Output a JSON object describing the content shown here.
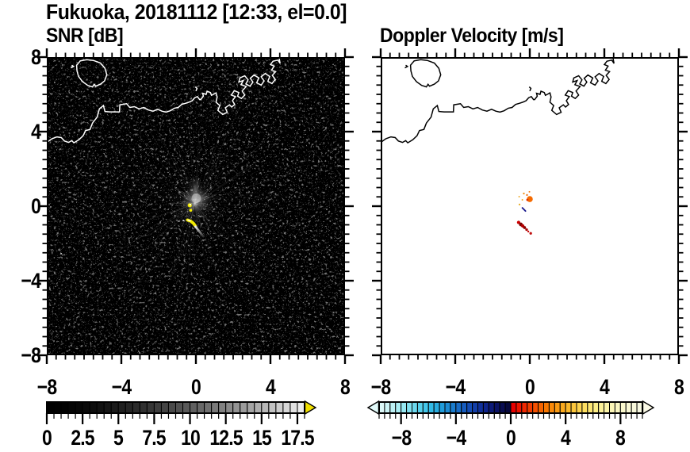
{
  "title": "Fukuoka, 20181112 [12:33, el=0.0]",
  "panels": {
    "left_subtitle": "SNR [dB]",
    "right_subtitle": "Doppler Velocity [m/s]"
  },
  "axis": {
    "range": [
      -8,
      8
    ],
    "tick_values": [
      -8,
      -4,
      0,
      4,
      8
    ],
    "tick_labels": [
      "−8",
      "−4",
      "0",
      "4",
      "8"
    ],
    "minor_step": 0.5
  },
  "coastline": {
    "main": [
      [
        -8.0,
        3.42
      ],
      [
        -7.72,
        3.62
      ],
      [
        -7.45,
        3.72
      ],
      [
        -7.22,
        3.68
      ],
      [
        -7.05,
        3.5
      ],
      [
        -6.83,
        3.42
      ],
      [
        -6.66,
        3.52
      ],
      [
        -6.55,
        3.4
      ],
      [
        -6.28,
        3.56
      ],
      [
        -6.05,
        3.78
      ],
      [
        -5.92,
        4.06
      ],
      [
        -5.68,
        4.12
      ],
      [
        -5.55,
        4.46
      ],
      [
        -5.3,
        4.78
      ],
      [
        -5.18,
        5.22
      ],
      [
        -4.96,
        5.4
      ],
      [
        -4.88,
        5.08
      ],
      [
        -4.6,
        5.06
      ],
      [
        -4.34,
        5.06
      ],
      [
        -4.1,
        5.06
      ],
      [
        -4.08,
        5.44
      ],
      [
        -3.72,
        5.5
      ],
      [
        -3.55,
        5.3
      ],
      [
        -3.3,
        5.34
      ],
      [
        -3.05,
        5.22
      ],
      [
        -2.8,
        5.3
      ],
      [
        -2.55,
        5.16
      ],
      [
        -2.3,
        5.1
      ],
      [
        -2.05,
        5.2
      ],
      [
        -1.82,
        5.1
      ],
      [
        -1.6,
        5.05
      ],
      [
        -1.38,
        5.12
      ],
      [
        -1.15,
        5.26
      ],
      [
        -0.95,
        5.3
      ],
      [
        -0.76,
        5.46
      ],
      [
        -0.56,
        5.52
      ],
      [
        -0.38,
        5.58
      ],
      [
        -0.2,
        5.66
      ],
      [
        -0.06,
        5.82
      ],
      [
        0.08,
        5.88
      ],
      [
        0.2,
        5.72
      ],
      [
        0.26,
        5.72
      ],
      [
        0.4,
        5.9
      ],
      [
        0.36,
        6.06
      ],
      [
        0.55,
        6.0
      ],
      [
        0.6,
        6.17
      ],
      [
        0.78,
        6.1
      ],
      [
        0.84,
        5.95
      ],
      [
        0.98,
        6.02
      ],
      [
        1.08,
        6.08
      ],
      [
        1.14,
        5.86
      ],
      [
        1.08,
        5.58
      ],
      [
        1.28,
        5.4
      ],
      [
        1.18,
        5.14
      ],
      [
        1.44,
        4.92
      ],
      [
        1.68,
        5.04
      ],
      [
        1.58,
        5.28
      ],
      [
        1.8,
        5.44
      ],
      [
        1.92,
        5.32
      ],
      [
        2.08,
        5.46
      ],
      [
        1.96,
        5.66
      ],
      [
        2.12,
        5.88
      ],
      [
        1.9,
        5.96
      ],
      [
        2.06,
        6.2
      ],
      [
        2.3,
        6.1
      ],
      [
        2.24,
        5.9
      ],
      [
        2.44,
        5.78
      ],
      [
        2.62,
        5.96
      ],
      [
        2.48,
        6.18
      ],
      [
        2.7,
        6.42
      ],
      [
        2.42,
        6.52
      ],
      [
        2.54,
        6.74
      ],
      [
        2.3,
        6.66
      ],
      [
        2.36,
        6.88
      ],
      [
        2.62,
        7.0
      ],
      [
        2.8,
        6.78
      ],
      [
        2.68,
        6.56
      ],
      [
        2.9,
        6.44
      ],
      [
        3.06,
        6.66
      ],
      [
        2.92,
        6.86
      ],
      [
        3.12,
        7.04
      ],
      [
        3.38,
        6.88
      ],
      [
        3.26,
        6.62
      ],
      [
        3.5,
        6.5
      ],
      [
        3.66,
        6.72
      ],
      [
        3.5,
        6.94
      ],
      [
        3.72,
        7.12
      ],
      [
        3.96,
        6.96
      ],
      [
        3.86,
        6.7
      ],
      [
        4.08,
        6.58
      ],
      [
        4.26,
        6.8
      ],
      [
        4.1,
        7.02
      ],
      [
        4.28,
        7.22
      ],
      [
        4.06,
        7.3
      ],
      [
        4.2,
        7.52
      ],
      [
        4.0,
        7.6
      ],
      [
        4.14,
        7.78
      ],
      [
        4.4,
        7.84
      ],
      [
        4.52,
        7.66
      ],
      [
        4.46,
        7.98
      ],
      [
        4.3,
        8.06
      ]
    ],
    "island": [
      [
        -6.2,
        7.8
      ],
      [
        -5.85,
        7.86
      ],
      [
        -5.5,
        7.82
      ],
      [
        -5.12,
        7.68
      ],
      [
        -4.88,
        7.4
      ],
      [
        -4.78,
        7.05
      ],
      [
        -4.9,
        6.72
      ],
      [
        -5.12,
        6.55
      ],
      [
        -5.38,
        6.44
      ],
      [
        -5.46,
        6.54
      ],
      [
        -5.55,
        6.4
      ],
      [
        -5.8,
        6.48
      ],
      [
        -6.08,
        6.68
      ],
      [
        -6.3,
        6.96
      ],
      [
        -6.38,
        7.26
      ],
      [
        -6.4,
        7.56
      ],
      [
        -6.2,
        7.8
      ]
    ],
    "islet": [
      [
        -6.7,
        7.42
      ],
      [
        -6.56,
        7.5
      ],
      [
        -6.66,
        7.56
      ]
    ],
    "sea_mark": [
      [
        0.0,
        6.18
      ],
      [
        0.06,
        6.32
      ],
      [
        -0.03,
        6.4
      ]
    ]
  },
  "chart_data": [
    {
      "type": "heatmap",
      "title": "SNR [dB]",
      "xlim": [
        -8,
        8
      ],
      "ylim": [
        -8,
        8
      ],
      "grid": false,
      "background": "#000000",
      "coast_color": "#ffffff",
      "colorbar": {
        "range_db": [
          0,
          18
        ],
        "segment_db": 0.5,
        "tick_values": [
          0,
          2.5,
          5,
          7.5,
          10,
          12.5,
          15,
          17.5
        ],
        "tick_labels": [
          "0",
          "2.5",
          "5",
          "7.5",
          "10",
          "12.5",
          "15",
          "17.5"
        ],
        "palette": "black-to-white grayscale",
        "colors": [
          "#000000",
          "#010101",
          "#020202",
          "#050505",
          "#070707",
          "#0a0a0a",
          "#0e0e0e",
          "#121212",
          "#161616",
          "#1b1b1b",
          "#202020",
          "#252525",
          "#2b2b2b",
          "#303030",
          "#363636",
          "#3d3d3d",
          "#434343",
          "#4a4a4a",
          "#515151",
          "#595959",
          "#606060",
          "#686868",
          "#707070",
          "#797979",
          "#818181",
          "#8a8a8a",
          "#939393",
          "#9c9c9c",
          "#a5a5a5",
          "#afafaf",
          "#b8b8b8",
          "#c2c2c2",
          "#cdcdcd",
          "#d7d7d7",
          "#e1e1e1",
          "#ececec"
        ],
        "over_arrow_color": "#f0df00"
      },
      "echoes": {
        "noise_speckle": {
          "extent": "whole panel",
          "snr_db": [
            0,
            3
          ]
        },
        "clutter_haze": {
          "x": 0.0,
          "y": 0.34,
          "rx": 0.78,
          "ry": 0.66,
          "snr_db": [
            3,
            9
          ]
        },
        "ray_origin": {
          "x": -0.05,
          "y": 0.15
        },
        "strong_spots": [
          {
            "x": -0.33,
            "y": 0.05,
            "r": 0.11,
            "snr_db": 18
          },
          {
            "x": -0.28,
            "y": -0.22,
            "r": 0.08,
            "snr_db": 18
          }
        ],
        "strong_arc": {
          "points": [
            [
              -0.45,
              -0.74
            ],
            [
              -0.28,
              -0.8
            ],
            [
              -0.13,
              -0.92
            ],
            [
              -0.03,
              -1.06
            ]
          ],
          "snr_db": 18
        },
        "white_dash": {
          "points": [
            [
              -0.7,
              -0.74
            ],
            [
              -0.62,
              -0.8
            ]
          ],
          "snr_db": 14
        },
        "tail": {
          "from": [
            -0.02,
            -1.1
          ],
          "to": [
            0.4,
            -1.62
          ],
          "snr_db": [
            6,
            14
          ]
        },
        "faint_dot": {
          "x": -7.23,
          "y": -2.55,
          "snr_db": 10
        }
      }
    },
    {
      "type": "scatter",
      "title": "Doppler Velocity [m/s]",
      "xlim": [
        -8,
        8
      ],
      "ylim": [
        -8,
        8
      ],
      "grid": false,
      "background": "#ffffff",
      "coast_color": "#000000",
      "colorbar": {
        "range_ms": [
          -9.6,
          9.6
        ],
        "segment_ms": 0.4,
        "tick_values": [
          -8,
          -4,
          0,
          4,
          8
        ],
        "tick_labels": [
          "−8",
          "−4",
          "0",
          "4",
          "8"
        ],
        "palette": "diverging cyan-blue-navy / red-orange-cream",
        "colors": [
          "#dcf8f8",
          "#ccf4f6",
          "#bcf0f4",
          "#aaeef4",
          "#96e8f2",
          "#80e0f0",
          "#6cd8ee",
          "#56d0ec",
          "#42c6ea",
          "#32bae6",
          "#28ace0",
          "#209cdb",
          "#1c8cd4",
          "#1a7ccd",
          "#186cc6",
          "#165cbe",
          "#144cb4",
          "#123ea8",
          "#10309a",
          "#0e248a",
          "#0c1a78",
          "#0a1264",
          "#080c50",
          "#06083c",
          "#e80000",
          "#ec1400",
          "#f02800",
          "#f23c00",
          "#f55000",
          "#f66400",
          "#f87700",
          "#f98908",
          "#fa9a12",
          "#fbaa1e",
          "#fcb92c",
          "#fcc63c",
          "#fdd34e",
          "#fdde60",
          "#fde673",
          "#fdee86",
          "#fdf298",
          "#fcf5a8",
          "#fcf6b6",
          "#fbf7c2",
          "#faf8cc",
          "#f9f8d4",
          "#f8f8da",
          "#f7f8e0"
        ],
        "under_arrow_color": "#e2fafa",
        "over_arrow_color": "#fbfae6"
      },
      "points": [
        {
          "x": 0.0,
          "y": 0.38,
          "r": 0.16,
          "color": "#f56a00",
          "v_ms": 2.6
        },
        {
          "x": -0.13,
          "y": 0.34,
          "r": 0.06,
          "color": "#e03000, ",
          "v_ms": 1.2
        },
        {
          "x": -0.32,
          "y": 0.68,
          "r": 0.05,
          "color": "#f09018",
          "v_ms": 3.4
        },
        {
          "x": -0.15,
          "y": 0.6,
          "r": 0.05,
          "color": "#f07010",
          "v_ms": 2.8
        },
        {
          "x": -0.4,
          "y": 0.34,
          "r": 0.04,
          "color": "#f0a020",
          "v_ms": 3.6
        },
        {
          "x": -0.57,
          "y": 0.51,
          "r": 0.04,
          "color": "#eeaa28",
          "v_ms": 3.8
        },
        {
          "x": -0.02,
          "y": 0.77,
          "r": 0.04,
          "color": "#f08020",
          "v_ms": 3.2
        },
        {
          "x": -0.55,
          "y": 0.09,
          "r": 0.05,
          "color": "#e8ae28",
          "v_ms": 3.9
        },
        {
          "x": -0.6,
          "y": -0.87,
          "r": 0.09,
          "color": "#cc0000",
          "v_ms": 0.3
        },
        {
          "x": -0.48,
          "y": -0.98,
          "r": 0.1,
          "color": "#7c0404",
          "v_ms": 0.2
        },
        {
          "x": -0.38,
          "y": -1.06,
          "r": 0.09,
          "color": "#b80000",
          "v_ms": 0.3
        },
        {
          "x": -0.28,
          "y": -1.15,
          "r": 0.08,
          "color": "#8c0000",
          "v_ms": 0.2
        },
        {
          "x": -0.17,
          "y": -1.26,
          "r": 0.07,
          "color": "#a80000",
          "v_ms": 0.25
        },
        {
          "x": -0.08,
          "y": -1.36,
          "r": 0.05,
          "color": "#c80000",
          "v_ms": 0.3
        },
        {
          "x": 0.05,
          "y": -1.46,
          "r": 0.07,
          "color": "#c01010",
          "v_ms": 0.3
        }
      ],
      "segments": [
        {
          "name": "velocity-dash",
          "from": [
            -0.4,
            -0.09
          ],
          "to": [
            -0.23,
            -0.26
          ],
          "color": "#1a1a8c",
          "v_ms": -7.8
        }
      ]
    }
  ]
}
